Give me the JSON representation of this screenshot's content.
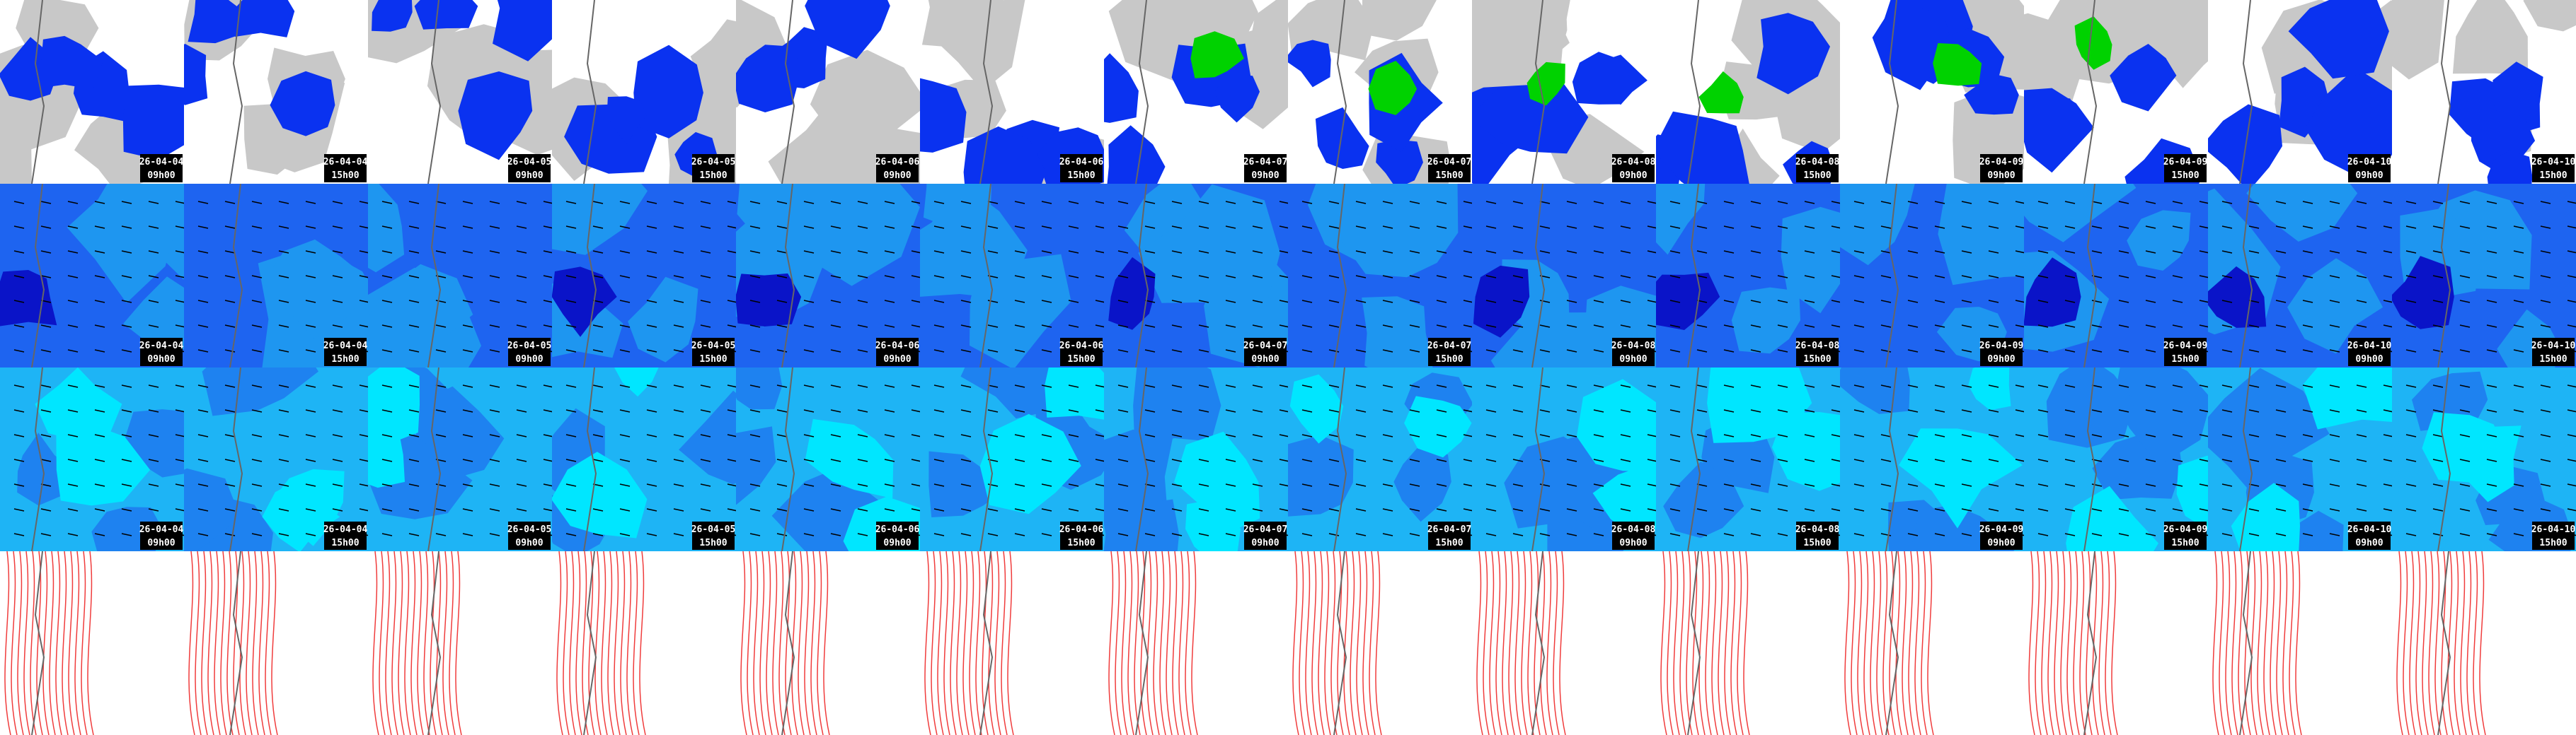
{
  "columns": [
    {
      "date": "26-04-04",
      "time": "09h00"
    },
    {
      "date": "26-04-04",
      "time": "15h00"
    },
    {
      "date": "26-04-05",
      "time": "09h00"
    },
    {
      "date": "26-04-05",
      "time": "15h00"
    },
    {
      "date": "26-04-06",
      "time": "09h00"
    },
    {
      "date": "26-04-06",
      "time": "15h00"
    },
    {
      "date": "26-04-07",
      "time": "09h00"
    },
    {
      "date": "26-04-07",
      "time": "15h00"
    },
    {
      "date": "26-04-08",
      "time": "09h00"
    },
    {
      "date": "26-04-08",
      "time": "15h00"
    },
    {
      "date": "26-04-09",
      "time": "09h00"
    },
    {
      "date": "26-04-09",
      "time": "15h00"
    },
    {
      "date": "26-04-10",
      "time": "09h00"
    },
    {
      "date": "26-04-10",
      "time": "15h00"
    }
  ]
}
